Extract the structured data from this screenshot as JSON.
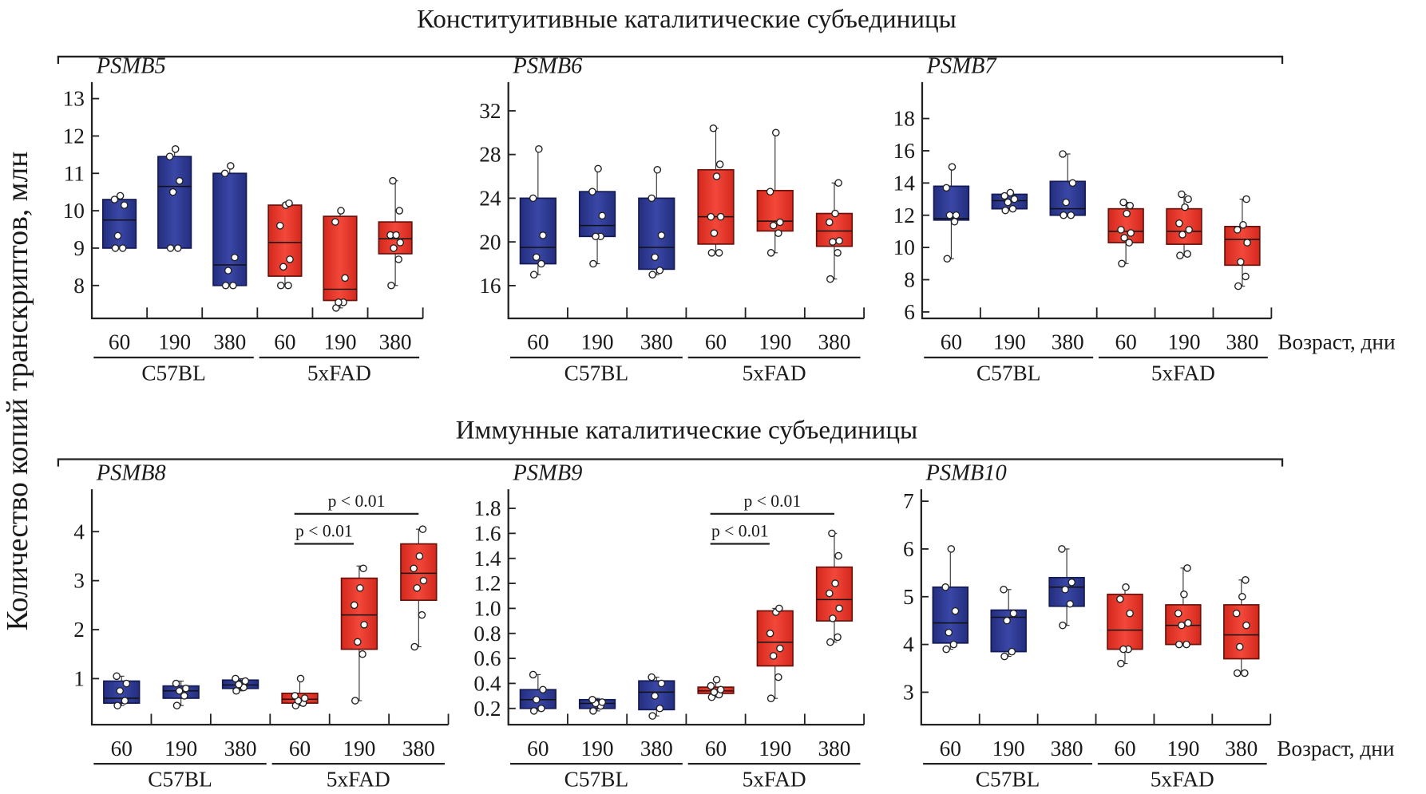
{
  "section_titles": [
    "Конституитивные каталитические субъединицы",
    "Иммунные каталитические субъединицы"
  ],
  "ylabel": "Количество копий транскриптов, млн",
  "colors": {
    "C57BL": "#2e3a94",
    "5xFAD": "#e8392c"
  },
  "chart_data": [
    {
      "type": "box",
      "title": "PSMB5",
      "ylim": [
        7.12,
        13.2
      ],
      "yticks": [
        8,
        9,
        10,
        11,
        12,
        13
      ],
      "categories": [
        "60",
        "190",
        "380",
        "60",
        "190",
        "380"
      ],
      "groups": [
        "C57BL",
        "5xFAD"
      ],
      "xlabel": "",
      "boxes": [
        {
          "group": "C57BL",
          "age": "60",
          "whisker": [
            9.0,
            10.4
          ],
          "q1": 9.0,
          "median": 9.75,
          "q3": 10.3,
          "points": [
            9.0,
            9.0,
            9.33,
            10.15,
            10.3,
            10.4
          ]
        },
        {
          "group": "C57BL",
          "age": "190",
          "whisker": [
            9.0,
            11.65
          ],
          "q1": 9.0,
          "median": 10.65,
          "q3": 11.45,
          "points": [
            9.0,
            9.0,
            10.5,
            10.8,
            11.45,
            11.65
          ]
        },
        {
          "group": "C57BL",
          "age": "380",
          "whisker": [
            8.0,
            11.2
          ],
          "q1": 8.0,
          "median": 8.55,
          "q3": 11.0,
          "points": [
            8.0,
            8.0,
            8.4,
            8.75,
            11.0,
            11.2
          ]
        },
        {
          "group": "5xFAD",
          "age": "60",
          "whisker": [
            8.0,
            10.2
          ],
          "q1": 8.25,
          "median": 9.15,
          "q3": 10.15,
          "points": [
            8.0,
            8.0,
            8.5,
            8.7,
            9.6,
            10.15,
            10.2
          ]
        },
        {
          "group": "5xFAD",
          "age": "190",
          "whisker": [
            7.4,
            10.0
          ],
          "q1": 7.6,
          "median": 7.9,
          "q3": 9.85,
          "points": [
            7.4,
            7.55,
            7.55,
            8.2,
            9.7,
            10.0
          ]
        },
        {
          "group": "5xFAD",
          "age": "380",
          "whisker": [
            8.0,
            10.8
          ],
          "q1": 8.85,
          "median": 9.25,
          "q3": 9.7,
          "points": [
            8.0,
            8.7,
            9.0,
            9.15,
            9.35,
            9.35,
            10.0,
            10.8
          ]
        }
      ],
      "significance": []
    },
    {
      "type": "box",
      "title": "PSMB6",
      "ylim": [
        13.0,
        33.8
      ],
      "yticks": [
        16,
        20,
        24,
        28,
        32
      ],
      "categories": [
        "60",
        "190",
        "380",
        "60",
        "190",
        "380"
      ],
      "groups": [
        "C57BL",
        "5xFAD"
      ],
      "xlabel": "",
      "boxes": [
        {
          "group": "C57BL",
          "age": "60",
          "whisker": [
            17,
            28.5
          ],
          "q1": 18,
          "median": 19.5,
          "q3": 24,
          "points": [
            17,
            18,
            18.6,
            20.6,
            24,
            28.5
          ]
        },
        {
          "group": "C57BL",
          "age": "190",
          "whisker": [
            18,
            26.7
          ],
          "q1": 20.5,
          "median": 21.5,
          "q3": 24.6,
          "points": [
            18,
            20.5,
            20.5,
            22.4,
            24.6,
            26.7
          ]
        },
        {
          "group": "C57BL",
          "age": "380",
          "whisker": [
            17,
            26.6
          ],
          "q1": 17.5,
          "median": 19.5,
          "q3": 24,
          "points": [
            17,
            17.4,
            18.6,
            20.6,
            24,
            26.6
          ]
        },
        {
          "group": "5xFAD",
          "age": "60",
          "whisker": [
            19,
            30.4
          ],
          "q1": 19.8,
          "median": 22.3,
          "q3": 26.6,
          "points": [
            19,
            19,
            20.8,
            22.3,
            22.3,
            26.0,
            27.1,
            30.4
          ]
        },
        {
          "group": "5xFAD",
          "age": "190",
          "whisker": [
            19,
            30
          ],
          "q1": 21,
          "median": 21.9,
          "q3": 24.7,
          "points": [
            19,
            20.8,
            21.5,
            21.8,
            24.6,
            30
          ]
        },
        {
          "group": "5xFAD",
          "age": "380",
          "whisker": [
            16.6,
            25.4
          ],
          "q1": 19.6,
          "median": 21.0,
          "q3": 22.6,
          "points": [
            16.6,
            19.0,
            20.0,
            20.1,
            21.8,
            22.6,
            25.4
          ]
        }
      ],
      "significance": []
    },
    {
      "type": "box",
      "title": "PSMB7",
      "ylim": [
        5.6,
        19.7
      ],
      "yticks": [
        6,
        8,
        10,
        12,
        14,
        16,
        18
      ],
      "categories": [
        "60",
        "190",
        "380",
        "60",
        "190",
        "380"
      ],
      "groups": [
        "C57BL",
        "5xFAD"
      ],
      "xlabel": "Возраст, дни",
      "boxes": [
        {
          "group": "C57BL",
          "age": "60",
          "whisker": [
            9.3,
            15
          ],
          "q1": 11.7,
          "median": 11.8,
          "q3": 13.8,
          "points": [
            9.3,
            11.6,
            12.0,
            12.0,
            13.7,
            15
          ]
        },
        {
          "group": "C57BL",
          "age": "190",
          "whisker": [
            12.3,
            13.4
          ],
          "q1": 12.4,
          "median": 12.9,
          "q3": 13.3,
          "points": [
            12.3,
            12.4,
            12.8,
            13.0,
            13.2,
            13.4
          ]
        },
        {
          "group": "C57BL",
          "age": "380",
          "whisker": [
            12,
            15.8
          ],
          "q1": 12.0,
          "median": 12.4,
          "q3": 14.1,
          "points": [
            12,
            12,
            12.8,
            14,
            15.8
          ]
        },
        {
          "group": "5xFAD",
          "age": "60",
          "whisker": [
            9,
            12.8
          ],
          "q1": 10.3,
          "median": 11.0,
          "q3": 12.4,
          "points": [
            9,
            10.3,
            10.6,
            10.9,
            11.1,
            12.1,
            12.6,
            12.8
          ]
        },
        {
          "group": "5xFAD",
          "age": "190",
          "whisker": [
            9.5,
            13.3
          ],
          "q1": 10.2,
          "median": 11.0,
          "q3": 12.4,
          "points": [
            9.5,
            9.6,
            10.8,
            11.1,
            11.5,
            12.5,
            13.0,
            13.3
          ]
        },
        {
          "group": "5xFAD",
          "age": "380",
          "whisker": [
            7.6,
            13
          ],
          "q1": 8.9,
          "median": 10.5,
          "q3": 11.3,
          "points": [
            7.6,
            8.2,
            9.1,
            10.3,
            11.1,
            11.4,
            13.0
          ]
        }
      ],
      "significance": []
    },
    {
      "type": "box",
      "title": "PSMB8",
      "ylim": [
        0.06,
        4.68
      ],
      "yticks": [
        1,
        2,
        3,
        4
      ],
      "categories": [
        "60",
        "190",
        "380",
        "60",
        "190",
        "380"
      ],
      "groups": [
        "C57BL",
        "5xFAD"
      ],
      "xlabel": "",
      "boxes": [
        {
          "group": "C57BL",
          "age": "60",
          "whisker": [
            0.45,
            1.05
          ],
          "q1": 0.5,
          "median": 0.6,
          "q3": 0.95,
          "points": [
            0.45,
            0.55,
            0.75,
            0.9,
            1.05
          ]
        },
        {
          "group": "C57BL",
          "age": "190",
          "whisker": [
            0.45,
            0.95
          ],
          "q1": 0.6,
          "median": 0.75,
          "q3": 0.85,
          "points": [
            0.45,
            0.65,
            0.75,
            0.8,
            0.9
          ]
        },
        {
          "group": "C57BL",
          "age": "380",
          "whisker": [
            0.75,
            1.0
          ],
          "q1": 0.8,
          "median": 0.87,
          "q3": 0.97,
          "points": [
            0.75,
            0.82,
            0.88,
            0.95,
            1.0
          ]
        },
        {
          "group": "5xFAD",
          "age": "60",
          "whisker": [
            0.45,
            1.0
          ],
          "q1": 0.5,
          "median": 0.58,
          "q3": 0.7,
          "points": [
            0.45,
            0.5,
            0.55,
            0.6,
            0.65,
            1.0
          ]
        },
        {
          "group": "5xFAD",
          "age": "190",
          "whisker": [
            0.55,
            3.3
          ],
          "q1": 1.6,
          "median": 2.3,
          "q3": 3.05,
          "points": [
            0.55,
            1.5,
            1.75,
            2.1,
            2.5,
            2.85,
            3.25
          ]
        },
        {
          "group": "5xFAD",
          "age": "380",
          "whisker": [
            1.65,
            4.05
          ],
          "q1": 2.6,
          "median": 3.15,
          "q3": 3.75,
          "points": [
            1.65,
            2.3,
            2.85,
            3.0,
            3.25,
            3.5,
            4.05
          ]
        }
      ],
      "significance": [
        {
          "from": 3,
          "to": 4,
          "label": "p < 0.01"
        },
        {
          "from": 3,
          "to": 5,
          "label": "p < 0.01"
        }
      ]
    },
    {
      "type": "box",
      "title": "PSMB9",
      "ylim": [
        0.07,
        1.88
      ],
      "yticks": [
        0.2,
        0.4,
        0.6,
        0.8,
        1.0,
        1.2,
        1.4,
        1.6,
        1.8
      ],
      "categories": [
        "60",
        "190",
        "380",
        "60",
        "190",
        "380"
      ],
      "groups": [
        "C57BL",
        "5xFAD"
      ],
      "xlabel": "",
      "boxes": [
        {
          "group": "C57BL",
          "age": "60",
          "whisker": [
            0.18,
            0.47
          ],
          "q1": 0.2,
          "median": 0.27,
          "q3": 0.35,
          "points": [
            0.18,
            0.2,
            0.27,
            0.35,
            0.47
          ]
        },
        {
          "group": "C57BL",
          "age": "190",
          "whisker": [
            0.18,
            0.28
          ],
          "q1": 0.2,
          "median": 0.24,
          "q3": 0.27,
          "points": [
            0.18,
            0.22,
            0.24,
            0.25,
            0.27
          ]
        },
        {
          "group": "C57BL",
          "age": "380",
          "whisker": [
            0.14,
            0.45
          ],
          "q1": 0.19,
          "median": 0.33,
          "q3": 0.42,
          "points": [
            0.14,
            0.2,
            0.3,
            0.4,
            0.45
          ]
        },
        {
          "group": "5xFAD",
          "age": "60",
          "whisker": [
            0.29,
            0.43
          ],
          "q1": 0.32,
          "median": 0.34,
          "q3": 0.37,
          "points": [
            0.29,
            0.31,
            0.33,
            0.35,
            0.38,
            0.43
          ]
        },
        {
          "group": "5xFAD",
          "age": "190",
          "whisker": [
            0.28,
            1.0
          ],
          "q1": 0.54,
          "median": 0.73,
          "q3": 0.98,
          "points": [
            0.28,
            0.45,
            0.62,
            0.68,
            0.8,
            0.97,
            1.0
          ]
        },
        {
          "group": "5xFAD",
          "age": "380",
          "whisker": [
            0.73,
            1.6
          ],
          "q1": 0.9,
          "median": 1.07,
          "q3": 1.33,
          "points": [
            0.73,
            0.77,
            0.92,
            1.0,
            1.12,
            1.2,
            1.42,
            1.6
          ]
        }
      ],
      "significance": [
        {
          "from": 3,
          "to": 4,
          "label": "p < 0.01"
        },
        {
          "from": 3,
          "to": 5,
          "label": "p < 0.01"
        }
      ]
    },
    {
      "type": "box",
      "title": "PSMB10",
      "ylim": [
        2.32,
        7.06
      ],
      "yticks": [
        3,
        4,
        5,
        6,
        7
      ],
      "categories": [
        "60",
        "190",
        "380",
        "60",
        "190",
        "380"
      ],
      "groups": [
        "C57BL",
        "5xFAD"
      ],
      "xlabel": "Возраст, дни",
      "boxes": [
        {
          "group": "C57BL",
          "age": "60",
          "whisker": [
            3.9,
            6.0
          ],
          "q1": 4.03,
          "median": 4.45,
          "q3": 5.2,
          "points": [
            3.9,
            4.0,
            4.25,
            4.7,
            5.2,
            6.0
          ]
        },
        {
          "group": "C57BL",
          "age": "190",
          "whisker": [
            3.75,
            5.15
          ],
          "q1": 3.85,
          "median": 4.57,
          "q3": 4.72,
          "points": [
            3.75,
            3.85,
            4.5,
            4.65,
            5.15
          ]
        },
        {
          "group": "C57BL",
          "age": "380",
          "whisker": [
            4.4,
            6.0
          ],
          "q1": 4.8,
          "median": 5.2,
          "q3": 5.4,
          "points": [
            4.4,
            4.85,
            5.15,
            5.3,
            6.0
          ]
        },
        {
          "group": "5xFAD",
          "age": "60",
          "whisker": [
            3.6,
            5.2
          ],
          "q1": 3.9,
          "median": 4.3,
          "q3": 5.05,
          "points": [
            3.6,
            3.9,
            3.9,
            4.65,
            4.95,
            5.2
          ]
        },
        {
          "group": "5xFAD",
          "age": "190",
          "whisker": [
            4.0,
            5.6
          ],
          "q1": 4.0,
          "median": 4.4,
          "q3": 4.83,
          "points": [
            4.0,
            4.0,
            4.4,
            4.45,
            4.65,
            5.05,
            5.6
          ]
        },
        {
          "group": "5xFAD",
          "age": "380",
          "whisker": [
            3.4,
            5.35
          ],
          "q1": 3.7,
          "median": 4.2,
          "q3": 4.83,
          "points": [
            3.4,
            3.4,
            3.95,
            4.4,
            4.65,
            5.0,
            5.35
          ]
        }
      ],
      "significance": []
    }
  ]
}
